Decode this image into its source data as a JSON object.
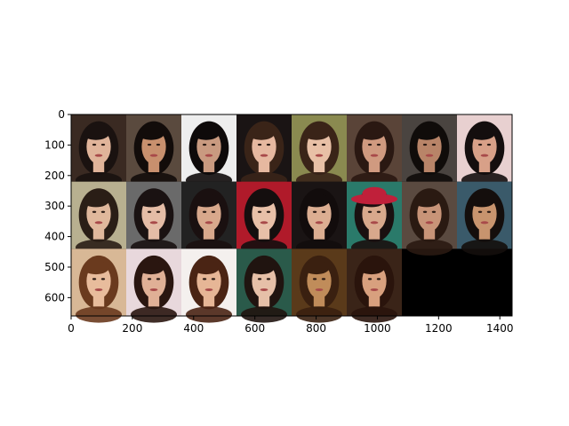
{
  "chart_data": {
    "type": "image",
    "title": "",
    "xlabel": "",
    "ylabel": "",
    "xlim": [
      0,
      1440
    ],
    "ylim": [
      660,
      0
    ],
    "x_ticks": [
      0,
      200,
      400,
      600,
      800,
      1000,
      1200,
      1400
    ],
    "y_ticks": [
      0,
      100,
      200,
      300,
      400,
      500,
      600
    ],
    "x_tick_labels": [
      "0",
      "200",
      "400",
      "600",
      "800",
      "1000",
      "1200",
      "1400"
    ],
    "y_tick_labels": [
      "0",
      "100",
      "200",
      "300",
      "400",
      "500",
      "600"
    ],
    "grid": false,
    "image_grid": {
      "rows": 3,
      "cols": 8,
      "tile_width": 180,
      "tile_height": 220,
      "filled_tiles": 22,
      "empty_tiles": 2,
      "content": "portrait photos of women's faces",
      "empty_color": "#000000",
      "tiles": [
        {
          "row": 0,
          "col": 0,
          "bg": "#3a2a22",
          "skin": "#e0b49a",
          "hair": "#1a1210"
        },
        {
          "row": 0,
          "col": 1,
          "bg": "#5a4a3e",
          "skin": "#c8906e",
          "hair": "#120c0a"
        },
        {
          "row": 0,
          "col": 2,
          "bg": "#eeeeee",
          "skin": "#c99a80",
          "hair": "#0e0a0a"
        },
        {
          "row": 0,
          "col": 3,
          "bg": "#1a1414",
          "skin": "#e6b8a0",
          "hair": "#3a2418"
        },
        {
          "row": 0,
          "col": 4,
          "bg": "#8a8a50",
          "skin": "#e8c0a6",
          "hair": "#3a2418"
        },
        {
          "row": 0,
          "col": 5,
          "bg": "#5a4438",
          "skin": "#d09a80",
          "hair": "#2a1812"
        },
        {
          "row": 0,
          "col": 6,
          "bg": "#4a4440",
          "skin": "#b88468",
          "hair": "#100c0a"
        },
        {
          "row": 0,
          "col": 7,
          "bg": "#e8d0d0",
          "skin": "#d8a088",
          "hair": "#140e0e"
        },
        {
          "row": 1,
          "col": 0,
          "bg": "#b8b090",
          "skin": "#e0b89c",
          "hair": "#2a1e16"
        },
        {
          "row": 1,
          "col": 1,
          "bg": "#6a6a6a",
          "skin": "#e4bca6",
          "hair": "#1a1212"
        },
        {
          "row": 1,
          "col": 2,
          "bg": "#222222",
          "skin": "#d8a88c",
          "hair": "#1a1010"
        },
        {
          "row": 1,
          "col": 3,
          "bg": "#b01a2a",
          "skin": "#e8c0a8",
          "hair": "#140e0e"
        },
        {
          "row": 1,
          "col": 4,
          "bg": "#1a1414",
          "skin": "#dcae92",
          "hair": "#120c0c"
        },
        {
          "row": 1,
          "col": 5,
          "bg": "#2a7a6a",
          "skin": "#d8a88c",
          "hair": "#1a1010",
          "hat": "#c0203a"
        },
        {
          "row": 1,
          "col": 6,
          "bg": "#5a4a40",
          "skin": "#c89478",
          "hair": "#2a1a12"
        },
        {
          "row": 1,
          "col": 7,
          "bg": "#3a5a6a",
          "skin": "#c8946e",
          "hair": "#140e0c"
        },
        {
          "row": 2,
          "col": 0,
          "bg": "#d8b896",
          "skin": "#e8bc9c",
          "hair": "#6a3a1e"
        },
        {
          "row": 2,
          "col": 1,
          "bg": "#e8d8dc",
          "skin": "#e0b096",
          "hair": "#2a1610"
        },
        {
          "row": 2,
          "col": 2,
          "bg": "#f4f0ee",
          "skin": "#e6b696",
          "hair": "#4a2414"
        },
        {
          "row": 2,
          "col": 3,
          "bg": "#2a5a4a",
          "skin": "#e6c0a8",
          "hair": "#201410"
        },
        {
          "row": 2,
          "col": 4,
          "bg": "#5a3a1a",
          "skin": "#c08c5a",
          "hair": "#3a2010"
        },
        {
          "row": 2,
          "col": 5,
          "bg": "#3a2418",
          "skin": "#d8a07e",
          "hair": "#2a140c"
        }
      ]
    }
  }
}
